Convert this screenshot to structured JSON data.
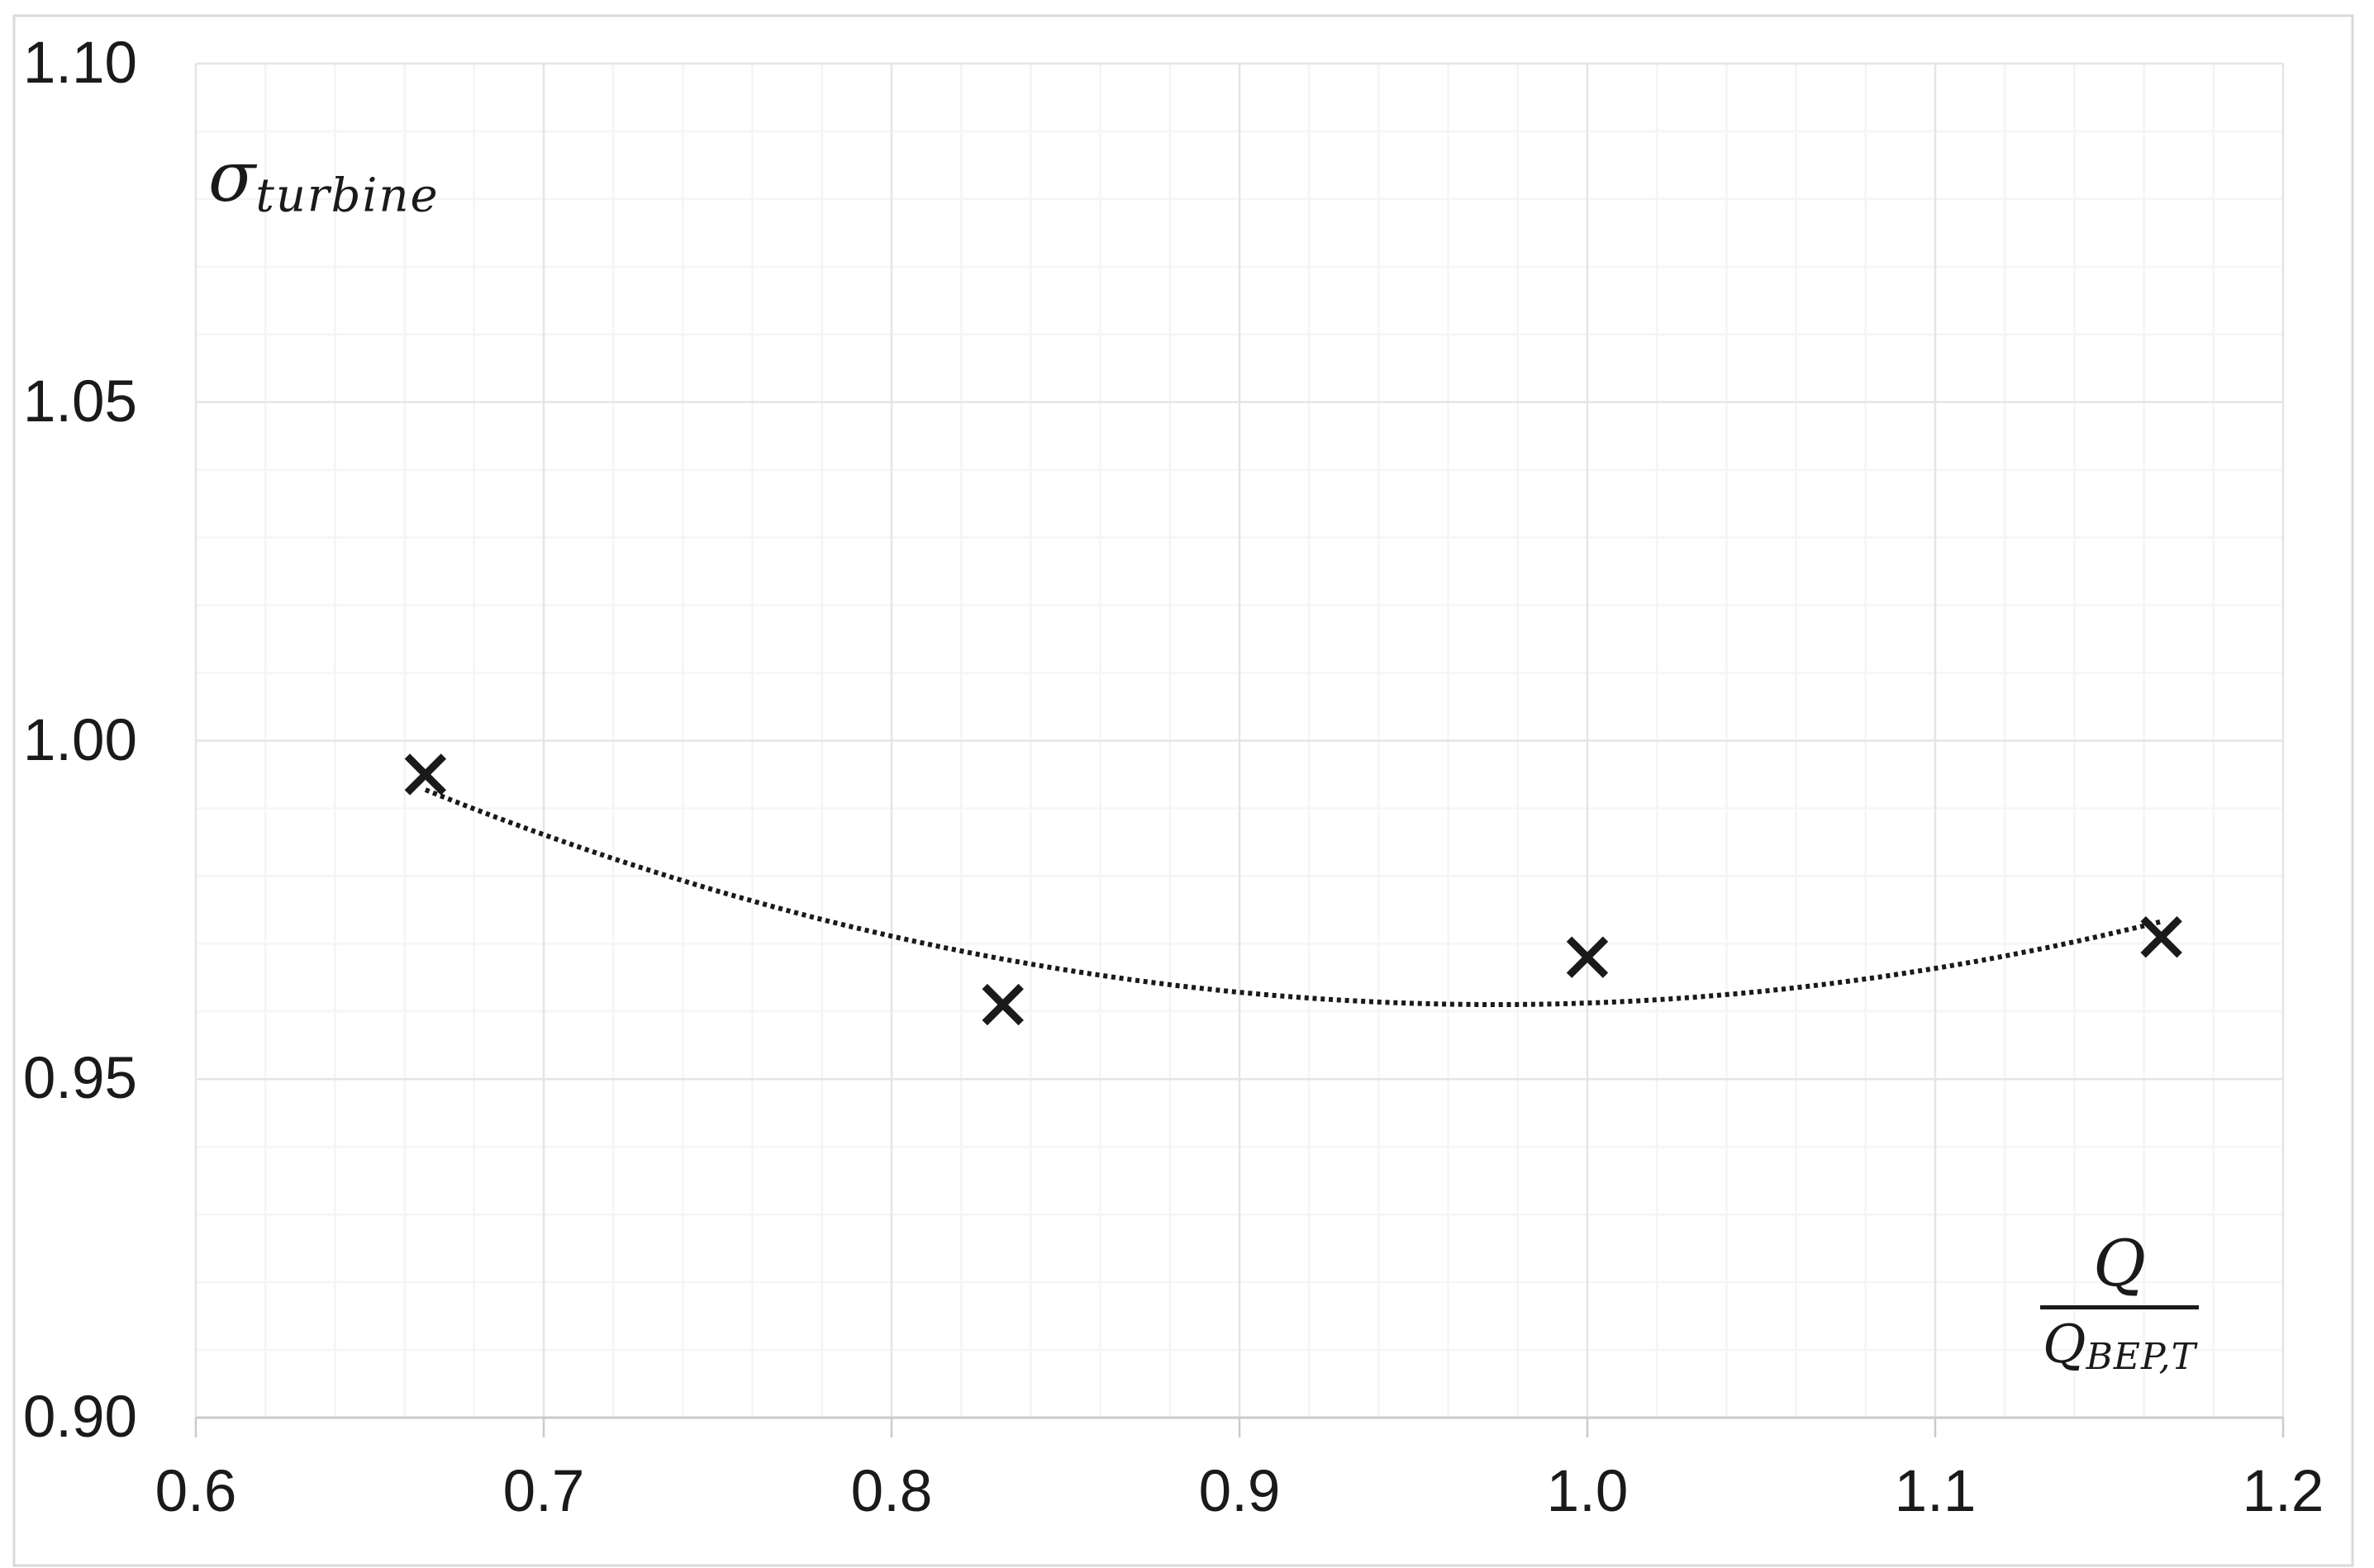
{
  "figure": {
    "background": "#ffffff",
    "border_color": "#d9d9d9"
  },
  "y_axis": {
    "title_symbol": "σ",
    "title_subscript": "turbine",
    "tick_labels": [
      "1.10",
      "1.05",
      "1.00",
      "0.95",
      "0.90"
    ],
    "min": 0.9,
    "max": 1.1,
    "major_step": 0.05,
    "minor_step": 0.01
  },
  "x_axis": {
    "title_numerator": "Q",
    "title_denominator_base": "Q",
    "title_denominator_subscript": "BEP,T",
    "tick_labels": [
      "0.6",
      "0.7",
      "0.8",
      "0.9",
      "1.0",
      "1.1",
      "1.2"
    ],
    "min": 0.6,
    "max": 1.2,
    "major_step": 0.1,
    "minor_step": 0.02
  },
  "chart_data": {
    "type": "scatter",
    "title": "",
    "xlabel": "Q / Q_BEP,T",
    "ylabel": "σ_turbine",
    "xlim": [
      0.6,
      1.2
    ],
    "ylim": [
      0.9,
      1.1
    ],
    "grid": {
      "major": true,
      "minor": true
    },
    "series": [
      {
        "name": "sigma_turbine",
        "marker": "x",
        "points": [
          [
            0.666,
            0.995
          ],
          [
            0.832,
            0.961
          ],
          [
            1.0,
            0.968
          ],
          [
            1.165,
            0.971
          ]
        ]
      }
    ],
    "trendline": {
      "style": "dotted",
      "fit": "polynomial",
      "order": 2,
      "x_start": 0.666,
      "x_end": 1.165
    },
    "colors": {
      "marker": "#1a1a1a",
      "trendline": "#1a1a1a",
      "gridline_major": "#e4e5e7",
      "gridline_minor": "#f5f5f7",
      "axis_line": "#c9cbcd",
      "text": "#1a1a1a"
    }
  }
}
